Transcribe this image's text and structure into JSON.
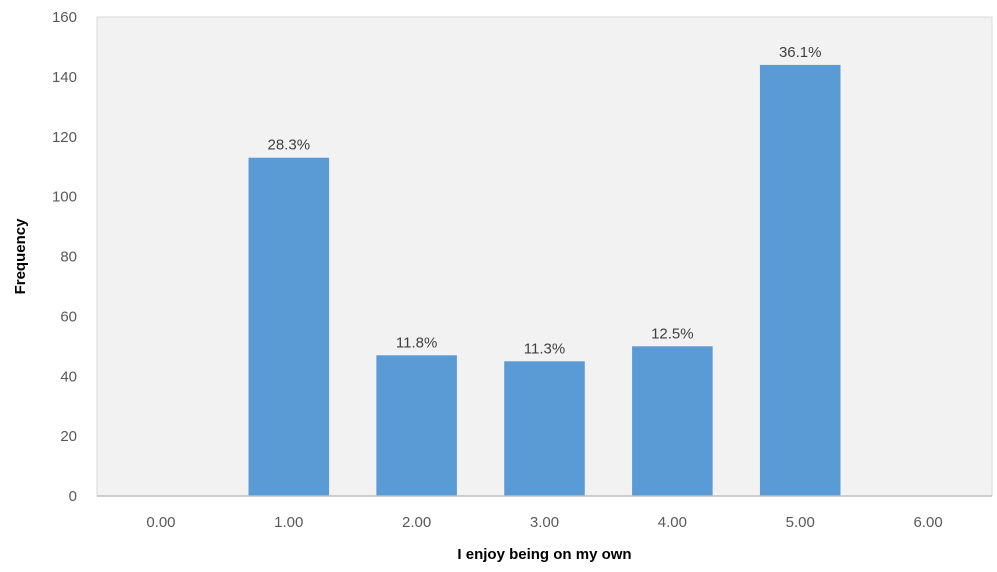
{
  "chart_data": {
    "type": "bar",
    "title": "",
    "xlabel": "I enjoy being on my own",
    "ylabel": "Frequency",
    "categories": [
      "0.00",
      "1.00",
      "2.00",
      "3.00",
      "4.00",
      "5.00",
      "6.00"
    ],
    "values": [
      0,
      113,
      47,
      45,
      50,
      144,
      0
    ],
    "data_labels": [
      "",
      "28.3%",
      "11.8%",
      "11.3%",
      "12.5%",
      "36.1%",
      ""
    ],
    "ylim": [
      0,
      160
    ],
    "yticks": [
      "0",
      "20",
      "40",
      "60",
      "80",
      "100",
      "120",
      "140",
      "160"
    ],
    "grid": false,
    "legend": "none",
    "colors": {
      "bar": "#5b9bd5",
      "plot_background": "#f2f2f2",
      "axis_line": "#bfbfbf"
    }
  }
}
